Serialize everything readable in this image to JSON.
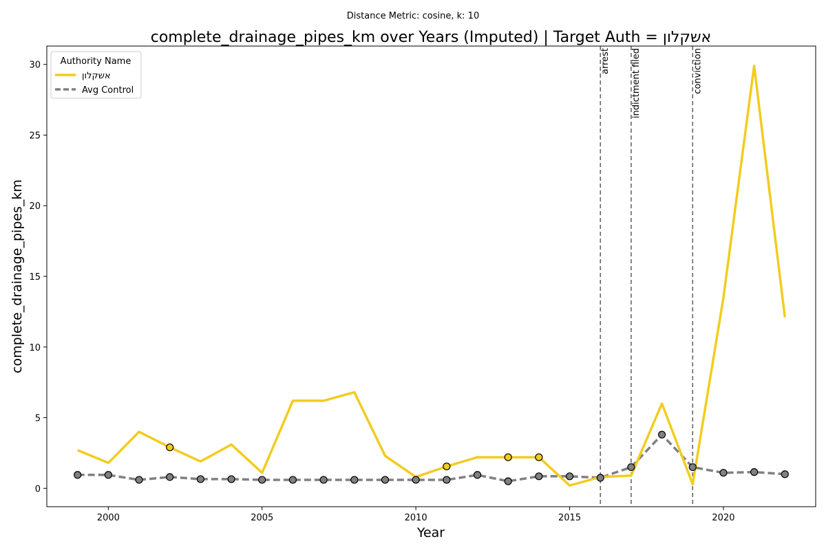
{
  "chart_data": {
    "type": "line",
    "suptitle": "Distance Metric: cosine, k: 10",
    "title": "complete_drainage_pipes_km over Years (Imputed) | Target Auth = אשקלון",
    "xlabel": "Year",
    "ylabel": "complete_drainage_pipes_km",
    "xlim": [
      1998,
      2023
    ],
    "ylim": [
      -1.3,
      31.3
    ],
    "xticks": [
      2000,
      2005,
      2010,
      2015,
      2020
    ],
    "yticks": [
      0,
      5,
      10,
      15,
      20,
      25,
      30
    ],
    "grid": false,
    "legend": {
      "title": "Authority Name",
      "position": "upper-left",
      "entries": [
        "אשקלון",
        "Avg Control"
      ]
    },
    "x": [
      1999,
      2000,
      2001,
      2002,
      2003,
      2004,
      2005,
      2006,
      2007,
      2008,
      2009,
      2010,
      2011,
      2012,
      2013,
      2014,
      2015,
      2016,
      2017,
      2018,
      2019,
      2020,
      2021,
      2022
    ],
    "series": [
      {
        "name": "אשקלון",
        "color": "#f2cc1f",
        "style": "solid",
        "values": [
          2.7,
          1.8,
          4.0,
          2.9,
          1.9,
          3.1,
          1.1,
          6.2,
          6.2,
          6.8,
          2.3,
          0.8,
          1.55,
          2.2,
          2.2,
          2.2,
          0.2,
          0.8,
          0.9,
          6.0,
          0.3,
          13.5,
          29.9,
          12.1
        ],
        "imputed_markers_x": [
          2002,
          2011,
          2013,
          2014
        ]
      },
      {
        "name": "Avg Control",
        "color": "#808080",
        "style": "dashed",
        "values": [
          0.95,
          0.95,
          0.6,
          0.8,
          0.65,
          0.65,
          0.6,
          0.6,
          0.6,
          0.6,
          0.6,
          0.6,
          0.6,
          0.95,
          0.5,
          0.85,
          0.85,
          0.75,
          1.5,
          3.8,
          1.5,
          1.1,
          1.15,
          1.0
        ]
      }
    ],
    "events": [
      {
        "x": 2016,
        "label": "arrest"
      },
      {
        "x": 2017,
        "label": "indictment filed"
      },
      {
        "x": 2019,
        "label": "conviction"
      }
    ]
  }
}
